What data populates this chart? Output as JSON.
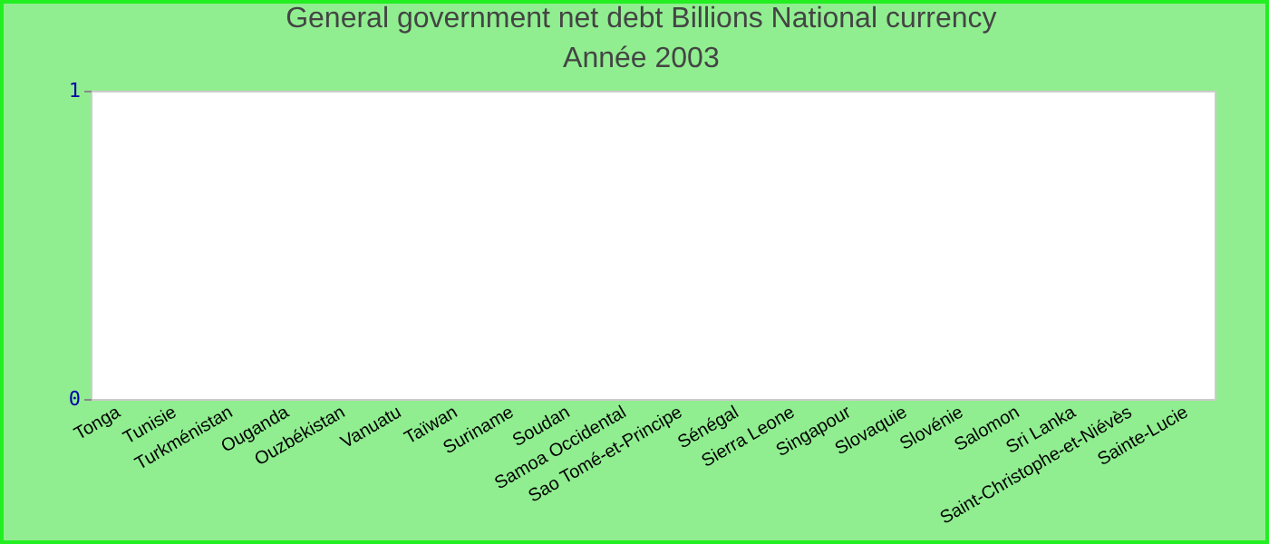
{
  "chart_data": {
    "type": "bar",
    "title": "General government net debt Billions National currency",
    "subtitle": "Année 2003",
    "categories": [
      "Tonga",
      "Tunisie",
      "Turkménistan",
      "Ouganda",
      "Ouzbékistan",
      "Vanuatu",
      "Taïwan",
      "Suriname",
      "Soudan",
      "Samoa Occidental",
      "Sao Tomé-et-Principe",
      "Sénégal",
      "Sierra Leone",
      "Singapour",
      "Slovaquie",
      "Slovénie",
      "Salomon",
      "Sri Lanka",
      "Saint-Christophe-et-Niévès",
      "Sainte-Lucie"
    ],
    "values": [
      null,
      null,
      null,
      null,
      null,
      null,
      null,
      null,
      null,
      null,
      null,
      null,
      null,
      null,
      null,
      null,
      null,
      null,
      null,
      null
    ],
    "ylim": [
      0,
      1
    ],
    "yticks": [
      0,
      1
    ],
    "grid": false
  }
}
